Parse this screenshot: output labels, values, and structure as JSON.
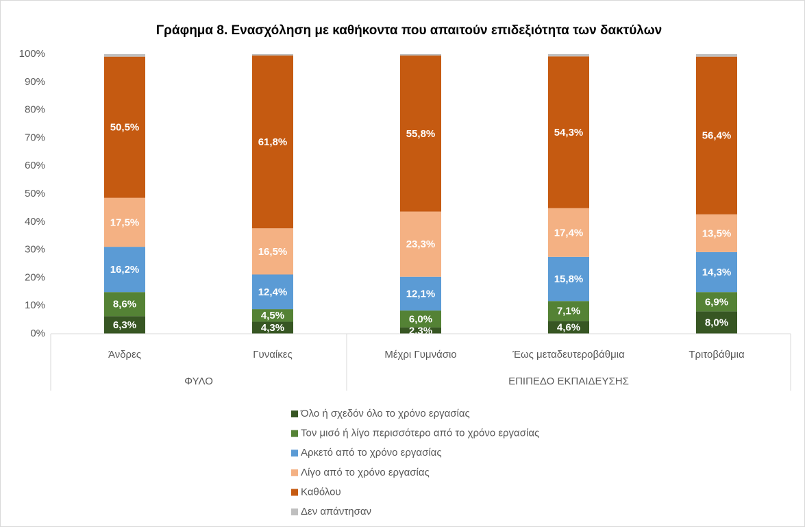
{
  "chart_data": {
    "type": "stacked_bar",
    "title": "Γράφημα 8. Ενασχόληση με καθήκοντα που απαιτούν επιδεξιότητα των δακτύλων",
    "categories": [
      "Άνδρες",
      "Γυναίκες",
      "Μέχρι Γυμνάσιο",
      "Έως μεταδευτεροβάθμια",
      "Τριτοβάθμια"
    ],
    "group_labels": [
      "ΦΥΛΟ",
      "ΕΠΙΠΕΔΟ ΕΚΠΑΙΔΕΥΣΗΣ"
    ],
    "series": [
      {
        "name": "Όλο ή σχεδόν όλο το χρόνο εργασίας",
        "color": "#375623",
        "values": [
          6.3,
          4.3,
          2.3,
          4.6,
          8.0
        ],
        "value_labels": [
          "6,3%",
          "4,3%",
          "2,3%",
          "4,6%",
          "8,0%"
        ]
      },
      {
        "name": "Τον μισό ή λίγο περισσότερο από το χρόνο εργασίας",
        "color": "#548235",
        "values": [
          8.6,
          4.5,
          6.0,
          7.1,
          6.9
        ],
        "value_labels": [
          "8,6%",
          "4,5%",
          "6,0%",
          "7,1%",
          "6,9%"
        ]
      },
      {
        "name": "Αρκετό από το χρόνο εργασίας",
        "color": "#5b9bd5",
        "values": [
          16.2,
          12.4,
          12.1,
          15.8,
          14.3
        ],
        "value_labels": [
          "16,2%",
          "12,4%",
          "12,1%",
          "15,8%",
          "14,3%"
        ]
      },
      {
        "name": "Λίγο από το χρόνο εργασίας",
        "color": "#f4b183",
        "values": [
          17.5,
          16.5,
          23.3,
          17.4,
          13.5
        ],
        "value_labels": [
          "17,5%",
          "16,5%",
          "23,3%",
          "17,4%",
          "13,5%"
        ]
      },
      {
        "name": "Καθόλου",
        "color": "#c55a11",
        "values": [
          50.5,
          61.8,
          55.8,
          54.3,
          56.4
        ],
        "value_labels": [
          "50,5%",
          "61,8%",
          "55,8%",
          "54,3%",
          "56,4%"
        ]
      },
      {
        "name": "Δεν απάντησαν",
        "color": "#bfbfbf",
        "values": [
          0.9,
          0.5,
          0.5,
          0.8,
          0.9
        ]
      }
    ],
    "ylim": [
      0,
      100
    ],
    "yticks": [
      {
        "value": 0,
        "label": "0%"
      },
      {
        "value": 10,
        "label": "10%"
      },
      {
        "value": 20,
        "label": "20%"
      },
      {
        "value": 30,
        "label": "30%"
      },
      {
        "value": 40,
        "label": "40%"
      },
      {
        "value": 50,
        "label": "50%"
      },
      {
        "value": 60,
        "label": "60%"
      },
      {
        "value": 70,
        "label": "70%"
      },
      {
        "value": 80,
        "label": "80%"
      },
      {
        "value": 90,
        "label": "90%"
      },
      {
        "value": 100,
        "label": "100%"
      }
    ],
    "grid": false,
    "legend": "bottom"
  }
}
